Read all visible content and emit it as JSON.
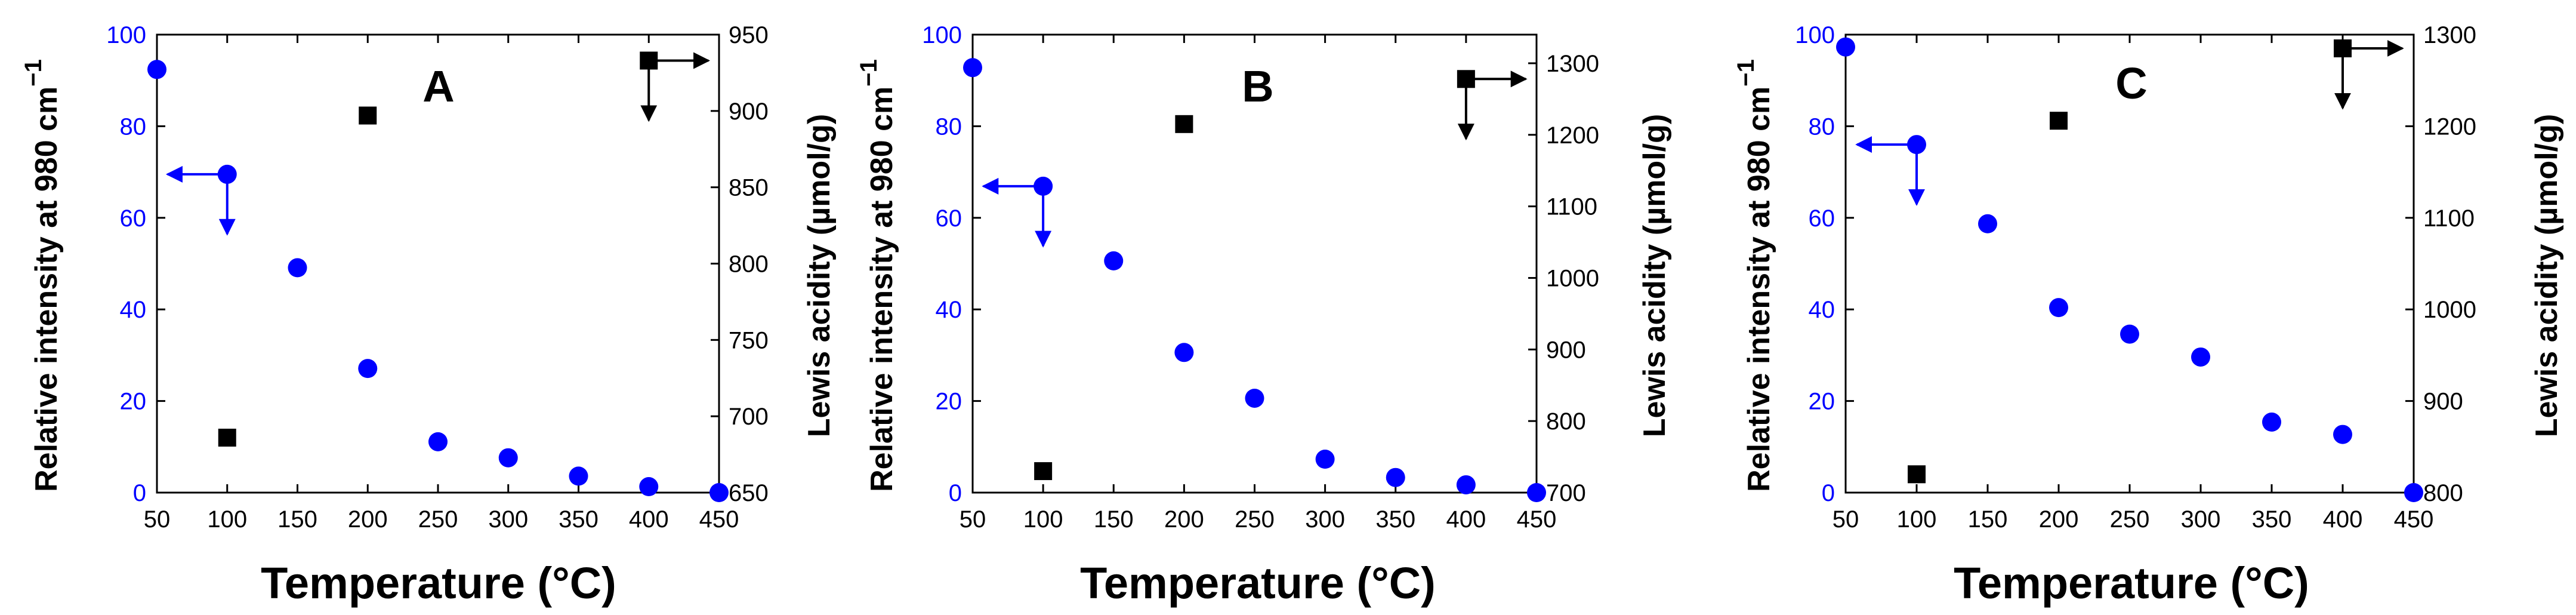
{
  "colors": {
    "relative_intensity": "#0000ff",
    "lewis_acidity": "#000000",
    "background": "#ffffff"
  },
  "chart_data": [
    {
      "type": "scatter",
      "panel_label": "A",
      "xlabel": "Temperature (°C)",
      "x_ticks": [
        "50",
        "100",
        "150",
        "200",
        "250",
        "300",
        "350",
        "400",
        "450"
      ],
      "xlim": [
        50,
        450
      ],
      "ylabel_left": "Relative intensity at 980 cm",
      "ylabel_left_superscript": "−1",
      "ylim_left": [
        0,
        100
      ],
      "y_ticks_left": [
        "0",
        "20",
        "40",
        "60",
        "80",
        "100"
      ],
      "ylabel_right": "Lewis acidity (µmol/g)",
      "ylim_right": [
        650,
        950
      ],
      "y_ticks_right": [
        "650",
        "700",
        "750",
        "800",
        "850",
        "900",
        "950"
      ],
      "series": [
        {
          "name": "Relative intensity at 980 cm−1",
          "axis": "left",
          "marker": "circle",
          "color": "#0000ff",
          "x": [
            50,
            100,
            150,
            200,
            250,
            300,
            350,
            400,
            450
          ],
          "y": [
            92.4,
            69.5,
            49.1,
            27.1,
            11.1,
            7.6,
            3.6,
            1.3,
            0
          ]
        },
        {
          "name": "Lewis acidity",
          "axis": "right",
          "marker": "square",
          "color": "#000000",
          "x": [
            100,
            200,
            400
          ],
          "y": [
            686,
            897,
            933
          ]
        }
      ],
      "arrows": [
        {
          "at_series": "Relative intensity at 980 cm−1",
          "point_x": 100,
          "points_to": "left axis"
        },
        {
          "at_series": "Lewis acidity",
          "point_x": 400,
          "points_to": "right axis"
        }
      ]
    },
    {
      "type": "scatter",
      "panel_label": "B",
      "xlabel": "Temperature (°C)",
      "x_ticks": [
        "50",
        "100",
        "150",
        "200",
        "250",
        "300",
        "350",
        "400",
        "450"
      ],
      "xlim": [
        50,
        450
      ],
      "ylabel_left": "Relative intensity at 980 cm",
      "ylabel_left_superscript": "−1",
      "ylim_left": [
        0,
        100
      ],
      "y_ticks_left": [
        "0",
        "20",
        "40",
        "60",
        "80",
        "100"
      ],
      "ylabel_right": "Lewis acidity (µmol/g)",
      "ylim_right": [
        700,
        1340
      ],
      "y_ticks_right": [
        "700",
        "800",
        "900",
        "1000",
        "1100",
        "1200",
        "1300"
      ],
      "series": [
        {
          "name": "Relative intensity at 980 cm−1",
          "axis": "left",
          "marker": "circle",
          "color": "#0000ff",
          "x": [
            50,
            100,
            150,
            200,
            250,
            300,
            350,
            400,
            450
          ],
          "y": [
            92.8,
            66.9,
            50.6,
            30.6,
            20.6,
            7.3,
            3.3,
            1.7,
            0
          ]
        },
        {
          "name": "Lewis acidity",
          "axis": "right",
          "marker": "square",
          "color": "#000000",
          "x": [
            100,
            200,
            400
          ],
          "y": [
            730,
            1215,
            1278
          ]
        }
      ],
      "arrows": [
        {
          "at_series": "Relative intensity at 980 cm−1",
          "point_x": 100,
          "points_to": "left axis"
        },
        {
          "at_series": "Lewis acidity",
          "point_x": 400,
          "points_to": "right axis"
        }
      ]
    },
    {
      "type": "scatter",
      "panel_label": "C",
      "xlabel": "Temperature (°C)",
      "x_ticks": [
        "50",
        "100",
        "150",
        "200",
        "250",
        "300",
        "350",
        "400",
        "450"
      ],
      "xlim": [
        50,
        450
      ],
      "ylabel_left": "Relative intensity at 980 cm",
      "ylabel_left_superscript": "−1",
      "ylim_left": [
        0,
        100
      ],
      "y_ticks_left": [
        "0",
        "20",
        "40",
        "60",
        "80",
        "100"
      ],
      "ylabel_right": "Lewis acidity (µmol/g)",
      "ylim_right": [
        800,
        1300
      ],
      "y_ticks_right": [
        "800",
        "900",
        "1000",
        "1100",
        "1200",
        "1300"
      ],
      "series": [
        {
          "name": "Relative intensity at 980 cm−1",
          "axis": "left",
          "marker": "circle",
          "color": "#0000ff",
          "x": [
            50,
            100,
            150,
            200,
            250,
            300,
            350,
            400,
            450
          ],
          "y": [
            97.3,
            76.0,
            58.7,
            40.4,
            34.6,
            29.6,
            15.4,
            12.7,
            0
          ]
        },
        {
          "name": "Lewis acidity",
          "axis": "right",
          "marker": "square",
          "color": "#000000",
          "x": [
            100,
            200,
            400
          ],
          "y": [
            820,
            1206,
            1285
          ]
        }
      ],
      "arrows": [
        {
          "at_series": "Relative intensity at 980 cm−1",
          "point_x": 100,
          "points_to": "left axis"
        },
        {
          "at_series": "Lewis acidity",
          "point_x": 400,
          "points_to": "right axis"
        }
      ]
    }
  ]
}
